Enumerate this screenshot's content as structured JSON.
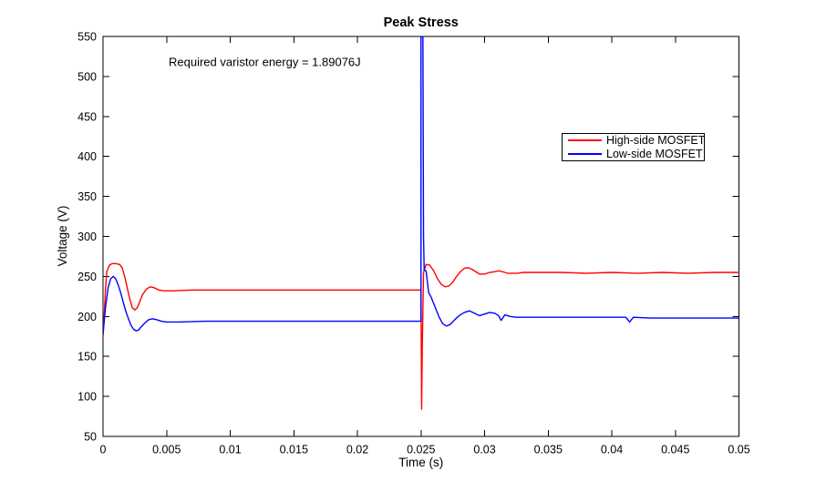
{
  "chart_data": {
    "type": "line",
    "title": "Peak Stress",
    "xlabel": "Time (s)",
    "ylabel": "Voltage (V)",
    "xlim": [
      0,
      0.05
    ],
    "ylim": [
      50,
      550
    ],
    "grid": false,
    "box": true,
    "legend_position": "upper-right-inside",
    "xticks": {
      "values": [
        0,
        0.005,
        0.01,
        0.015,
        0.02,
        0.025,
        0.03,
        0.035,
        0.04,
        0.045,
        0.05
      ],
      "labels": [
        "0",
        "0.005",
        "0.01",
        "0.015",
        "0.02",
        "0.025",
        "0.03",
        "0.035",
        "0.04",
        "0.045",
        "0.05"
      ]
    },
    "yticks": {
      "values": [
        50,
        100,
        150,
        200,
        250,
        300,
        350,
        400,
        450,
        500,
        550
      ],
      "labels": [
        "50",
        "100",
        "150",
        "200",
        "250",
        "300",
        "350",
        "400",
        "450",
        "500",
        "550"
      ]
    },
    "annotation": {
      "text": "Required varistor energy = 1.89076J",
      "x": 0.00516,
      "y": 513
    },
    "series": [
      {
        "name": "High-side MOSFET",
        "color": "#ff0000",
        "points": [
          [
            0,
            173
          ],
          [
            0.0002,
            235
          ],
          [
            0.0003,
            256
          ],
          [
            0.0005,
            264
          ],
          [
            0.0007,
            266
          ],
          [
            0.001,
            266
          ],
          [
            0.0013,
            265
          ],
          [
            0.0015,
            261
          ],
          [
            0.0017,
            250
          ],
          [
            0.0019,
            236
          ],
          [
            0.0021,
            222
          ],
          [
            0.0023,
            211
          ],
          [
            0.0025,
            208
          ],
          [
            0.0027,
            211
          ],
          [
            0.0029,
            219
          ],
          [
            0.0031,
            227
          ],
          [
            0.0034,
            234
          ],
          [
            0.0037,
            237
          ],
          [
            0.004,
            236
          ],
          [
            0.0044,
            233
          ],
          [
            0.0048,
            232
          ],
          [
            0.0055,
            232
          ],
          [
            0.007,
            233
          ],
          [
            0.009,
            233
          ],
          [
            0.012,
            233
          ],
          [
            0.015,
            233
          ],
          [
            0.018,
            233
          ],
          [
            0.021,
            233
          ],
          [
            0.024,
            233
          ],
          [
            0.0249,
            233
          ],
          [
            0.025,
            233
          ],
          [
            0.02505,
            84
          ],
          [
            0.0251,
            160
          ],
          [
            0.0252,
            255
          ],
          [
            0.0254,
            265
          ],
          [
            0.0257,
            264
          ],
          [
            0.026,
            257
          ],
          [
            0.0263,
            247
          ],
          [
            0.0266,
            240
          ],
          [
            0.0269,
            237
          ],
          [
            0.0272,
            238
          ],
          [
            0.0275,
            243
          ],
          [
            0.0278,
            250
          ],
          [
            0.0281,
            256
          ],
          [
            0.0284,
            260
          ],
          [
            0.0287,
            261
          ],
          [
            0.029,
            259
          ],
          [
            0.0293,
            256
          ],
          [
            0.0296,
            253
          ],
          [
            0.03,
            253
          ],
          [
            0.0304,
            255
          ],
          [
            0.0308,
            256
          ],
          [
            0.0311,
            257
          ],
          [
            0.0314,
            256
          ],
          [
            0.0318,
            254
          ],
          [
            0.0322,
            254
          ],
          [
            0.0326,
            254
          ],
          [
            0.033,
            255
          ],
          [
            0.034,
            255
          ],
          [
            0.036,
            255
          ],
          [
            0.038,
            254
          ],
          [
            0.04,
            255
          ],
          [
            0.042,
            254
          ],
          [
            0.044,
            255
          ],
          [
            0.046,
            254
          ],
          [
            0.048,
            255
          ],
          [
            0.05,
            255
          ]
        ]
      },
      {
        "name": "Low-side MOSFET",
        "color": "#0000ff",
        "points": [
          [
            0,
            178
          ],
          [
            0.0002,
            212
          ],
          [
            0.0004,
            236
          ],
          [
            0.0006,
            247
          ],
          [
            0.0008,
            250
          ],
          [
            0.001,
            247
          ],
          [
            0.0012,
            239
          ],
          [
            0.0014,
            229
          ],
          [
            0.0016,
            217
          ],
          [
            0.0018,
            206
          ],
          [
            0.002,
            197
          ],
          [
            0.0022,
            189
          ],
          [
            0.0024,
            184
          ],
          [
            0.0026,
            182
          ],
          [
            0.0028,
            183
          ],
          [
            0.003,
            187
          ],
          [
            0.0033,
            192
          ],
          [
            0.0036,
            196
          ],
          [
            0.0039,
            197
          ],
          [
            0.0042,
            196
          ],
          [
            0.0046,
            194
          ],
          [
            0.005,
            193
          ],
          [
            0.006,
            193
          ],
          [
            0.008,
            194
          ],
          [
            0.011,
            194
          ],
          [
            0.014,
            194
          ],
          [
            0.017,
            194
          ],
          [
            0.02,
            194
          ],
          [
            0.023,
            194
          ],
          [
            0.0249,
            194
          ],
          [
            0.025,
            194
          ],
          [
            0.025,
            550
          ],
          [
            0.02515,
            550
          ],
          [
            0.0252,
            300
          ],
          [
            0.02525,
            258
          ],
          [
            0.0254,
            257
          ],
          [
            0.0256,
            230
          ],
          [
            0.0258,
            224
          ],
          [
            0.0261,
            212
          ],
          [
            0.0264,
            200
          ],
          [
            0.0267,
            191
          ],
          [
            0.027,
            188
          ],
          [
            0.0273,
            190
          ],
          [
            0.0276,
            195
          ],
          [
            0.028,
            201
          ],
          [
            0.0284,
            205
          ],
          [
            0.0288,
            207
          ],
          [
            0.0292,
            204
          ],
          [
            0.0296,
            201
          ],
          [
            0.03,
            203
          ],
          [
            0.0304,
            205
          ],
          [
            0.0308,
            204
          ],
          [
            0.0311,
            201
          ],
          [
            0.0313,
            195
          ],
          [
            0.0316,
            202
          ],
          [
            0.032,
            200
          ],
          [
            0.0325,
            199
          ],
          [
            0.033,
            199
          ],
          [
            0.035,
            199
          ],
          [
            0.037,
            199
          ],
          [
            0.039,
            199
          ],
          [
            0.0411,
            199
          ],
          [
            0.0414,
            193
          ],
          [
            0.0417,
            199
          ],
          [
            0.043,
            198
          ],
          [
            0.045,
            198
          ],
          [
            0.047,
            198
          ],
          [
            0.049,
            198
          ],
          [
            0.05,
            198
          ]
        ]
      }
    ]
  }
}
